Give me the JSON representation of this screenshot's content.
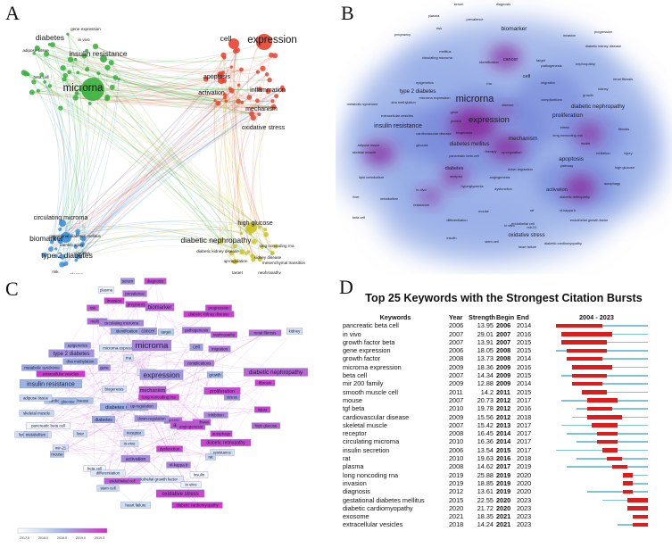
{
  "panels": {
    "a": "A",
    "b": "B",
    "c": "C",
    "d": "D"
  },
  "colors": {
    "red_cluster": "#e8442e",
    "green_cluster": "#36b03a",
    "blue_cluster": "#3d8ed8",
    "yellow_cluster": "#c9c21f",
    "density_blue": "#8fa8e6",
    "density_purple": "#8a2a9c",
    "burst_red": "#e01b1b",
    "burst_line": "#7fc4d6"
  },
  "panel_a": {
    "labels": [
      {
        "text": "expression",
        "color": "#d92e1c",
        "size": "large"
      },
      {
        "text": "cell",
        "color": "#d92e1c",
        "size": "medium"
      },
      {
        "text": "apoptosis",
        "color": "#d92e1c",
        "size": "small"
      },
      {
        "text": "activation",
        "color": "#d92e1c",
        "size": "small"
      },
      {
        "text": "inflammation",
        "color": "#d92e1c",
        "size": "small"
      },
      {
        "text": "mechanism",
        "color": "#d92e1c",
        "size": "small"
      },
      {
        "text": "oxidative stress",
        "color": "#d92e1c",
        "size": "small"
      },
      {
        "text": "microrna",
        "color": "#2f8f2f",
        "size": "large"
      },
      {
        "text": "insulin resistance",
        "color": "#2f8f2f",
        "size": "medium"
      },
      {
        "text": "diabetes",
        "color": "#2f8f2f",
        "size": "medium"
      },
      {
        "text": "gene expression",
        "color": "#2f8f2f",
        "size": "tiny"
      },
      {
        "text": "in vivo",
        "color": "#2f8f2f",
        "size": "tiny"
      },
      {
        "text": "adipose tissue",
        "color": "#2f8f2f",
        "size": "tiny"
      },
      {
        "text": "beta cell",
        "color": "#2f8f2f",
        "size": "tiny"
      },
      {
        "text": "circulating microrna",
        "color": "#2766a8",
        "size": "small"
      },
      {
        "text": "biomarker",
        "color": "#2766a8",
        "size": "medium"
      },
      {
        "text": "type 2 diabetes",
        "color": "#2766a8",
        "size": "medium"
      },
      {
        "text": "gestational diabetes mellitus",
        "color": "#2766a8",
        "size": "tiny"
      },
      {
        "text": "identification",
        "color": "#2766a8",
        "size": "tiny"
      },
      {
        "text": "mellitus",
        "color": "#2766a8",
        "size": "tiny"
      },
      {
        "text": "plasma",
        "color": "#2766a8",
        "size": "tiny"
      },
      {
        "text": "risk",
        "color": "#2766a8",
        "size": "tiny"
      },
      {
        "text": "high glucose",
        "color": "#8a8510",
        "size": "small"
      },
      {
        "text": "diabetic nephropathy",
        "color": "#8a8510",
        "size": "medium"
      },
      {
        "text": "diabetic kidney disease",
        "color": "#8a8510",
        "size": "tiny"
      },
      {
        "text": "kidney disease",
        "color": "#8a8510",
        "size": "tiny"
      },
      {
        "text": "long noncoding rna",
        "color": "#8a8510",
        "size": "tiny"
      },
      {
        "text": "up-regulation",
        "color": "#8a8510",
        "size": "tiny"
      },
      {
        "text": "mesenchymal transition",
        "color": "#8a8510",
        "size": "tiny"
      },
      {
        "text": "target",
        "color": "#8a8510",
        "size": "tiny"
      },
      {
        "text": "nephropathy",
        "color": "#8a8510",
        "size": "tiny"
      }
    ]
  },
  "panel_b": {
    "labels": [
      "serum",
      "diagnosis",
      "plasma",
      "prevalence",
      "risk",
      "pregnancy",
      "biomarker",
      "invasion",
      "progression",
      "diabetic kidney disease",
      "mellitus",
      "circulating microrna",
      "identification",
      "cancer",
      "target",
      "pathogenesis",
      "nephropathy",
      "renal fibrosis",
      "epigenetics",
      "type 2 diabetes",
      "microrna expression",
      "microrna",
      "cell",
      "kidney",
      "dna methylation",
      "gene",
      "rna",
      "migration",
      "metabolic syndrome",
      "expression",
      "growth",
      "diabetic nephropathy",
      "extracellular vesicles",
      "protein",
      "disease",
      "complications",
      "insulin resistance",
      "biogenesis",
      "proliferation",
      "stress",
      "cardiovascular disease",
      "long noncoding rna",
      "mechanism",
      "fibrosis",
      "adipose tissue",
      "glucose",
      "diabetes mellitus",
      "model",
      "skeletal muscle",
      "therapy",
      "up-regulation",
      "inhibition",
      "injury",
      "pancreatic beta cell",
      "high glucose",
      "lipid metabolism",
      "diabetes",
      "down-regulation",
      "pathway",
      "apoptosis",
      "receptor",
      "angiogenesis",
      "autophagy",
      "liver",
      "metabolism",
      "in-vivo",
      "hyperglycemia",
      "dysfunction",
      "activation",
      "diabetic retinopathy",
      "resistance",
      "mouse",
      "rat",
      "nf-kappa b",
      "beta cell",
      "differentiation",
      "endothelial cell",
      "endothelial growth factor",
      "in vitro",
      "oxidative stress",
      "mir-21",
      "insulin",
      "stem cell",
      "heart failure",
      "diabetic cardiomyopathy"
    ]
  },
  "panel_c": {
    "nodes": [
      {
        "text": "serum",
        "year": 2018.0
      },
      {
        "text": "diagnosis",
        "year": 2019.3
      },
      {
        "text": "plasma",
        "year": 2015.2
      },
      {
        "text": "prevalence",
        "year": 2018.5
      },
      {
        "text": "invasion",
        "year": 2019.6
      },
      {
        "text": "pregnancy",
        "year": 2019.4
      },
      {
        "text": "risk",
        "year": 2019.0
      },
      {
        "text": "biomarker",
        "year": 2018.9
      },
      {
        "text": "progression",
        "year": 2019.5
      },
      {
        "text": "diabetic kidney disease",
        "year": 2019.6
      },
      {
        "text": "mellitus",
        "year": 2018.6
      },
      {
        "text": "circulating microrna",
        "year": 2018.2
      },
      {
        "text": "identification",
        "year": 2017.6
      },
      {
        "text": "cancer",
        "year": 2017.8
      },
      {
        "text": "target",
        "year": 2016.8
      },
      {
        "text": "pathogenesis",
        "year": 2018.4
      },
      {
        "text": "nephropathy",
        "year": 2019.1
      },
      {
        "text": "kidney",
        "year": 2016.2
      },
      {
        "text": "renal fibrosis",
        "year": 2018.6
      },
      {
        "text": "epigenetics",
        "year": 2017.8
      },
      {
        "text": "type 2 diabetes",
        "year": 2018.0
      },
      {
        "text": "microrna expression",
        "year": 2016.1
      },
      {
        "text": "dna methylation",
        "year": 2017.6
      },
      {
        "text": "rna",
        "year": 2016.4
      },
      {
        "text": "microrna",
        "year": 2018.2
      },
      {
        "text": "cell",
        "year": 2017.8
      },
      {
        "text": "migration",
        "year": 2018.5
      },
      {
        "text": "metabolic syndrome",
        "year": 2017.6
      },
      {
        "text": "gene",
        "year": 2018.0
      },
      {
        "text": "extracellular vesicles",
        "year": 2019.8
      },
      {
        "text": "protein",
        "year": 2015.8
      },
      {
        "text": "expression",
        "year": 2017.9
      },
      {
        "text": "growth",
        "year": 2017.3
      },
      {
        "text": "complications",
        "year": 2018.4
      },
      {
        "text": "diabetic nephropathy",
        "year": 2018.8
      },
      {
        "text": "insulin resistance",
        "year": 2017.4
      },
      {
        "text": "biogenesis",
        "year": 2016.3
      },
      {
        "text": "proliferation",
        "year": 2019.4
      },
      {
        "text": "stress",
        "year": 2018.0
      },
      {
        "text": "cardiovascular disease",
        "year": 2017.0
      },
      {
        "text": "long noncoding rna",
        "year": 2019.6
      },
      {
        "text": "mechanism",
        "year": 2019.0
      },
      {
        "text": "fibrosis",
        "year": 2019.5
      },
      {
        "text": "adipose tissue",
        "year": 2016.5
      },
      {
        "text": "glucose",
        "year": 2017.2
      },
      {
        "text": "diabetes mellitus",
        "year": 2017.5
      },
      {
        "text": "skeletal muscle",
        "year": 2016.6
      },
      {
        "text": "therapy",
        "year": 2018.5
      },
      {
        "text": "up-regulation",
        "year": 2017.9
      },
      {
        "text": "inhibition",
        "year": 2018.2
      },
      {
        "text": "injury",
        "year": 2019.5
      },
      {
        "text": "lipid-metabolism",
        "year": 2016.4
      },
      {
        "text": "pancreatic beta cell",
        "year": 2015.0
      },
      {
        "text": "high glucose",
        "year": 2018.7
      },
      {
        "text": "diabetes",
        "year": 2017.6
      },
      {
        "text": "down-regulation",
        "year": 2018.0
      },
      {
        "text": "pathway",
        "year": 2019.0
      },
      {
        "text": "apoptosis",
        "year": 2019.1
      },
      {
        "text": "receptor",
        "year": 2016.9
      },
      {
        "text": "angiogenesis",
        "year": 2019.2
      },
      {
        "text": "autophagy",
        "year": 2019.4
      },
      {
        "text": "metabolism",
        "year": 2016.9
      },
      {
        "text": "liver",
        "year": 2016.5
      },
      {
        "text": "in-vivo",
        "year": 2016.4
      },
      {
        "text": "hyperglycemia",
        "year": 2019.6
      },
      {
        "text": "dysfunction",
        "year": 2019.5
      },
      {
        "text": "activation",
        "year": 2018.1
      },
      {
        "text": "diabetic retinopathy",
        "year": 2019.4
      },
      {
        "text": "resistance",
        "year": 2016.2
      },
      {
        "text": "mouse",
        "year": 2016.9
      },
      {
        "text": "rat",
        "year": 2016.6
      },
      {
        "text": "nf-kappa b",
        "year": 2018.3
      },
      {
        "text": "beta cell",
        "year": 2014.9
      },
      {
        "text": "differentiation",
        "year": 2015.9
      },
      {
        "text": "endothelial growth factor",
        "year": 2016.0
      },
      {
        "text": "endothelial cell",
        "year": 2018.9
      },
      {
        "text": "in vitro",
        "year": 2015.4
      },
      {
        "text": "mir-21",
        "year": 2016.1
      },
      {
        "text": "insulin",
        "year": 2014.8
      },
      {
        "text": "stem cell",
        "year": 2016.5
      },
      {
        "text": "oxidative stress",
        "year": 2019.4
      },
      {
        "text": "heart failure",
        "year": 2016.4
      },
      {
        "text": "diabetic cardiomyopathy",
        "year": 2019.7
      }
    ],
    "legend_ticks": [
      "2017.5",
      "2018.0",
      "2018.5",
      "2019.0",
      "2019.5"
    ]
  },
  "panel_d": {
    "title": "Top 25 Keywords with the Strongest Citation Bursts",
    "headers": {
      "keywords": "Keywords",
      "year": "Year",
      "strength": "Strength",
      "begin": "Begin",
      "end": "End",
      "range": "2004 - 2023"
    },
    "range_start": 2004,
    "range_end": 2023,
    "rows": [
      {
        "keyword": "pancreatic beta cell",
        "year": "2006",
        "strength": "13.95",
        "begin": "2006",
        "end": "2014"
      },
      {
        "keyword": "in vivo",
        "year": "2007",
        "strength": "29.01",
        "begin": "2007",
        "end": "2016"
      },
      {
        "keyword": "growth factor beta",
        "year": "2007",
        "strength": "13.91",
        "begin": "2007",
        "end": "2015"
      },
      {
        "keyword": "gene expression",
        "year": "2006",
        "strength": "18.05",
        "begin": "2008",
        "end": "2015"
      },
      {
        "keyword": "growth factor",
        "year": "2008",
        "strength": "13.73",
        "begin": "2008",
        "end": "2014"
      },
      {
        "keyword": "microrna expression",
        "year": "2009",
        "strength": "18.36",
        "begin": "2009",
        "end": "2016"
      },
      {
        "keyword": "beta cell",
        "year": "2007",
        "strength": "14.34",
        "begin": "2009",
        "end": "2015"
      },
      {
        "keyword": "mir 200 family",
        "year": "2009",
        "strength": "12.88",
        "begin": "2009",
        "end": "2014"
      },
      {
        "keyword": "smooth muscle cell",
        "year": "2011",
        "strength": "14.2",
        "begin": "2011",
        "end": "2015"
      },
      {
        "keyword": "mouse",
        "year": "2007",
        "strength": "20.73",
        "begin": "2012",
        "end": "2017"
      },
      {
        "keyword": "tgf beta",
        "year": "2010",
        "strength": "19.78",
        "begin": "2012",
        "end": "2016"
      },
      {
        "keyword": "cardiovascular disease",
        "year": "2009",
        "strength": "15.56",
        "begin": "2012",
        "end": "2018"
      },
      {
        "keyword": "skeletal muscle",
        "year": "2007",
        "strength": "15.42",
        "begin": "2013",
        "end": "2017"
      },
      {
        "keyword": "receptor",
        "year": "2008",
        "strength": "16.45",
        "begin": "2014",
        "end": "2017"
      },
      {
        "keyword": "circulating microrna",
        "year": "2010",
        "strength": "16.36",
        "begin": "2014",
        "end": "2017"
      },
      {
        "keyword": "insulin secretion",
        "year": "2006",
        "strength": "13.54",
        "begin": "2015",
        "end": "2017"
      },
      {
        "keyword": "rat",
        "year": "2010",
        "strength": "19.63",
        "begin": "2016",
        "end": "2018"
      },
      {
        "keyword": "plasma",
        "year": "2008",
        "strength": "14.62",
        "begin": "2017",
        "end": "2019"
      },
      {
        "keyword": "long noncoding rna",
        "year": "2019",
        "strength": "25.88",
        "begin": "2019",
        "end": "2020"
      },
      {
        "keyword": "invasion",
        "year": "2019",
        "strength": "18.85",
        "begin": "2019",
        "end": "2020"
      },
      {
        "keyword": "diagnosis",
        "year": "2012",
        "strength": "13.61",
        "begin": "2019",
        "end": "2020"
      },
      {
        "keyword": "gestational diabetes mellitus",
        "year": "2015",
        "strength": "22.55",
        "begin": "2020",
        "end": "2023"
      },
      {
        "keyword": "diabetic cardiomyopathy",
        "year": "2020",
        "strength": "21.72",
        "begin": "2020",
        "end": "2023"
      },
      {
        "keyword": "exosome",
        "year": "2021",
        "strength": "18.35",
        "begin": "2021",
        "end": "2023"
      },
      {
        "keyword": "extracellular vesicles",
        "year": "2018",
        "strength": "14.24",
        "begin": "2021",
        "end": "2023"
      }
    ]
  }
}
